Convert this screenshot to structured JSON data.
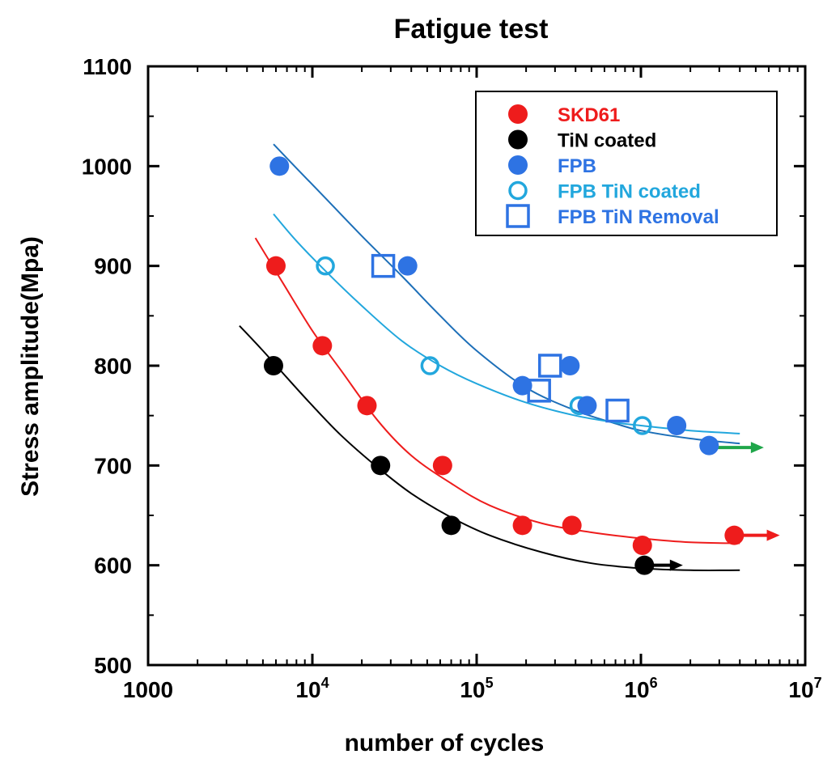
{
  "chart_data": {
    "type": "scatter",
    "title": "Fatigue test",
    "xlabel": "number of cycles",
    "ylabel": "Stress amplitude(Mpa)",
    "x_scale": "log",
    "xlim": [
      1000,
      10000000
    ],
    "ylim": [
      500,
      1100
    ],
    "y_ticks": [
      500,
      600,
      700,
      800,
      900,
      1000,
      1100
    ],
    "x_ticks": [
      {
        "value": 1000,
        "base": "1000",
        "exp": ""
      },
      {
        "value": 10000,
        "base": "10",
        "exp": "4"
      },
      {
        "value": 100000,
        "base": "10",
        "exp": "5"
      },
      {
        "value": 1000000,
        "base": "10",
        "exp": "6"
      },
      {
        "value": 10000000,
        "base": "10",
        "exp": "7"
      }
    ],
    "grid": false,
    "legend_position": "top-right",
    "series": [
      {
        "name": "SKD61",
        "color": "#ee1c1c",
        "marker": "filled-circle",
        "points": [
          [
            6000,
            900
          ],
          [
            11500,
            820
          ],
          [
            21500,
            760
          ],
          [
            62000,
            700
          ],
          [
            190000,
            640
          ],
          [
            380000,
            640
          ],
          [
            1020000,
            620
          ],
          [
            3700000,
            630
          ]
        ],
        "fit": [
          [
            4500,
            928
          ],
          [
            6500,
            885
          ],
          [
            10000,
            835
          ],
          [
            15000,
            795
          ],
          [
            25000,
            745
          ],
          [
            40000,
            710
          ],
          [
            70000,
            682
          ],
          [
            120000,
            660
          ],
          [
            250000,
            642
          ],
          [
            500000,
            633
          ],
          [
            1000000,
            627
          ],
          [
            2000000,
            623
          ],
          [
            4000000,
            622
          ]
        ],
        "runout_arrow": {
          "from": 3700000,
          "to": 7000000,
          "y": 630,
          "color": "#ee1c1c"
        }
      },
      {
        "name": "TiN coated",
        "color": "#000000",
        "marker": "filled-circle",
        "points": [
          [
            5800,
            800
          ],
          [
            26000,
            700
          ],
          [
            70000,
            640
          ],
          [
            1050000,
            600
          ]
        ],
        "fit": [
          [
            3600,
            840
          ],
          [
            5000,
            815
          ],
          [
            7000,
            788
          ],
          [
            10000,
            760
          ],
          [
            15000,
            730
          ],
          [
            25000,
            698
          ],
          [
            40000,
            672
          ],
          [
            70000,
            648
          ],
          [
            120000,
            630
          ],
          [
            250000,
            613
          ],
          [
            500000,
            602
          ],
          [
            1000000,
            597
          ],
          [
            2000000,
            595
          ],
          [
            4000000,
            595
          ]
        ],
        "runout_arrow": {
          "from": 1050000,
          "to": 1800000,
          "y": 600,
          "color": "#000000"
        }
      },
      {
        "name": "FPB",
        "color": "#2e73e3",
        "marker": "filled-circle",
        "points": [
          [
            6300,
            1000
          ],
          [
            38000,
            900
          ],
          [
            190000,
            780
          ],
          [
            370000,
            800
          ],
          [
            470000,
            760
          ],
          [
            1650000,
            740
          ],
          [
            2600000,
            720
          ]
        ],
        "fit": [
          [
            5800,
            1022
          ],
          [
            8000,
            998
          ],
          [
            12000,
            968
          ],
          [
            20000,
            930
          ],
          [
            35000,
            890
          ],
          [
            60000,
            850
          ],
          [
            100000,
            815
          ],
          [
            200000,
            778
          ],
          [
            400000,
            755
          ],
          [
            700000,
            742
          ],
          [
            1000000,
            735
          ],
          [
            2000000,
            727
          ],
          [
            4000000,
            722
          ]
        ],
        "runout_arrow": {
          "from": 2600000,
          "to": 5600000,
          "y": 718,
          "color": "#1fa64a"
        }
      },
      {
        "name": "FPB TiN coated",
        "color": "#22a7dd",
        "marker": "open-circle",
        "points": [
          [
            12000,
            900
          ],
          [
            52000,
            800
          ],
          [
            420000,
            760
          ],
          [
            1020000,
            740
          ]
        ],
        "fit": [
          [
            5800,
            952
          ],
          [
            8000,
            925
          ],
          [
            12000,
            895
          ],
          [
            20000,
            860
          ],
          [
            35000,
            825
          ],
          [
            60000,
            800
          ],
          [
            100000,
            782
          ],
          [
            200000,
            763
          ],
          [
            400000,
            750
          ],
          [
            700000,
            743
          ],
          [
            1000000,
            740
          ],
          [
            2000000,
            735
          ],
          [
            4000000,
            732
          ]
        ]
      },
      {
        "name": "FPB TiN Removal",
        "color": "#2e73e3",
        "marker": "open-square",
        "points": [
          [
            27000,
            900
          ],
          [
            280000,
            800
          ],
          [
            240000,
            775
          ],
          [
            720000,
            755
          ]
        ]
      }
    ]
  }
}
